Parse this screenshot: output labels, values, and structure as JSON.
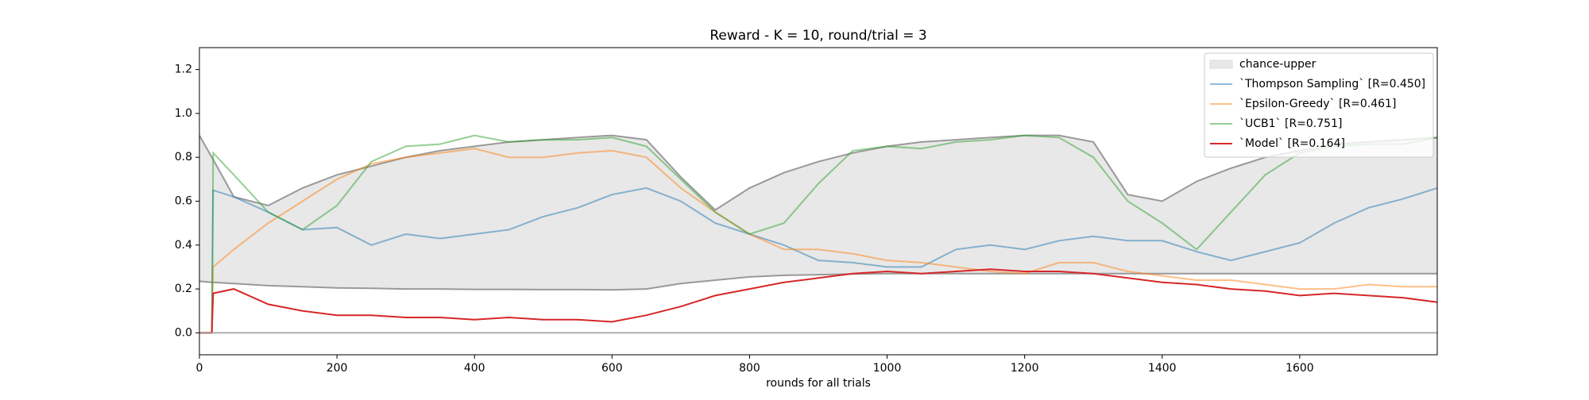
{
  "chart_data": {
    "type": "line",
    "title": "Reward - K = 10, round/trial = 3",
    "xlabel": "rounds for all trials",
    "x": [
      0,
      18,
      20,
      50,
      100,
      150,
      200,
      250,
      300,
      350,
      400,
      450,
      500,
      550,
      600,
      650,
      700,
      750,
      800,
      850,
      900,
      950,
      1000,
      1050,
      1100,
      1150,
      1200,
      1250,
      1300,
      1350,
      1400,
      1450,
      1500,
      1550,
      1600,
      1650,
      1700,
      1750,
      1800
    ],
    "series": [
      {
        "name": "chance-upper",
        "type": "area",
        "color": "#e8e8e8",
        "line_color": "#999999",
        "values": [
          0.9,
          0.8,
          0.79,
          0.62,
          0.58,
          0.66,
          0.72,
          0.76,
          0.8,
          0.83,
          0.85,
          0.87,
          0.88,
          0.89,
          0.9,
          0.88,
          0.71,
          0.56,
          0.66,
          0.73,
          0.78,
          0.82,
          0.85,
          0.87,
          0.88,
          0.89,
          0.9,
          0.9,
          0.87,
          0.63,
          0.6,
          0.69,
          0.75,
          0.8,
          0.83,
          0.86,
          0.87,
          0.88,
          0.89
        ],
        "lower": [
          0.235,
          0.23,
          0.23,
          0.225,
          0.215,
          0.21,
          0.205,
          0.203,
          0.2,
          0.2,
          0.198,
          0.198,
          0.197,
          0.197,
          0.196,
          0.2,
          0.225,
          0.24,
          0.255,
          0.262,
          0.265,
          0.268,
          0.27,
          0.27,
          0.27,
          0.27,
          0.27,
          0.27,
          0.27,
          0.27,
          0.27,
          0.27,
          0.27,
          0.27,
          0.27,
          0.27,
          0.27,
          0.27,
          0.27
        ]
      },
      {
        "name": "`Thompson Sampling` [R=0.450]",
        "color": "#1f77b4",
        "alpha": 0.5,
        "values": [
          0,
          0,
          0.65,
          0.62,
          0.55,
          0.47,
          0.48,
          0.4,
          0.45,
          0.43,
          0.45,
          0.47,
          0.53,
          0.57,
          0.63,
          0.66,
          0.6,
          0.5,
          0.45,
          0.4,
          0.33,
          0.32,
          0.3,
          0.3,
          0.38,
          0.4,
          0.38,
          0.42,
          0.44,
          0.42,
          0.42,
          0.37,
          0.33,
          0.37,
          0.41,
          0.5,
          0.57,
          0.61,
          0.66
        ]
      },
      {
        "name": "`Epsilon-Greedy` [R=0.461]",
        "color": "#ff7f0e",
        "alpha": 0.5,
        "values": [
          0,
          0,
          0.3,
          0.38,
          0.5,
          0.6,
          0.7,
          0.77,
          0.8,
          0.82,
          0.84,
          0.8,
          0.8,
          0.82,
          0.83,
          0.8,
          0.66,
          0.55,
          0.45,
          0.38,
          0.38,
          0.36,
          0.33,
          0.32,
          0.3,
          0.28,
          0.27,
          0.32,
          0.32,
          0.28,
          0.26,
          0.24,
          0.24,
          0.22,
          0.2,
          0.2,
          0.22,
          0.21,
          0.21
        ]
      },
      {
        "name": "`UCB1` [R=0.751]",
        "color": "#2ca02c",
        "alpha": 0.5,
        "values": [
          0,
          0,
          0.82,
          0.72,
          0.55,
          0.47,
          0.58,
          0.78,
          0.85,
          0.86,
          0.9,
          0.87,
          0.88,
          0.88,
          0.89,
          0.85,
          0.7,
          0.55,
          0.45,
          0.5,
          0.68,
          0.83,
          0.85,
          0.84,
          0.87,
          0.88,
          0.9,
          0.89,
          0.8,
          0.6,
          0.5,
          0.38,
          0.55,
          0.72,
          0.82,
          0.85,
          0.86,
          0.86,
          0.89
        ]
      },
      {
        "name": "`Model` [R=0.164]",
        "color": "#d62728",
        "alpha": 1,
        "values": [
          0,
          0,
          0.18,
          0.2,
          0.13,
          0.1,
          0.08,
          0.08,
          0.07,
          0.07,
          0.06,
          0.07,
          0.06,
          0.06,
          0.05,
          0.08,
          0.12,
          0.17,
          0.2,
          0.23,
          0.25,
          0.27,
          0.28,
          0.27,
          0.28,
          0.29,
          0.28,
          0.28,
          0.27,
          0.25,
          0.23,
          0.22,
          0.2,
          0.19,
          0.17,
          0.18,
          0.17,
          0.16,
          0.14
        ]
      }
    ],
    "hlines": [
      0
    ],
    "xlim": [
      0,
      1800
    ],
    "ylim": [
      -0.1,
      1.3
    ],
    "xticks": [
      0,
      200,
      400,
      600,
      800,
      1000,
      1200,
      1400,
      1600
    ],
    "yticks": [
      {
        "value": 0,
        "label": "0.0"
      },
      0.2,
      0.4,
      0.6,
      0.8,
      {
        "value": 1,
        "label": "1.0"
      },
      1.2
    ],
    "legend": "upper right",
    "grid": false
  }
}
